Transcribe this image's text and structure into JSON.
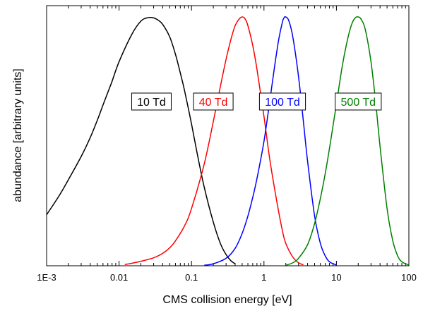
{
  "chart_data": {
    "type": "line",
    "xlabel": "CMS collision energy   [eV]",
    "ylabel": "abundance   [arbitrary units]",
    "x_scale": "log",
    "xlim": [
      0.001,
      100
    ],
    "ylim": [
      0,
      1
    ],
    "y_ticks_shown": false,
    "grid": false,
    "x_ticks": [
      {
        "value": 0.001,
        "label": "1E-3"
      },
      {
        "value": 0.01,
        "label": "0.01"
      },
      {
        "value": 0.1,
        "label": "0.1"
      },
      {
        "value": 1,
        "label": "1"
      },
      {
        "value": 10,
        "label": "10"
      },
      {
        "value": 100,
        "label": "100"
      }
    ],
    "series": [
      {
        "name": "10 Td",
        "color": "#000000",
        "label_pos": {
          "x": 0.028,
          "y": 0.66
        },
        "points": [
          [
            0.001,
            0.205
          ],
          [
            0.0015,
            0.283
          ],
          [
            0.002,
            0.346
          ],
          [
            0.003,
            0.439
          ],
          [
            0.004,
            0.515
          ],
          [
            0.005,
            0.584
          ],
          [
            0.006,
            0.646
          ],
          [
            0.007,
            0.697
          ],
          [
            0.008,
            0.741
          ],
          [
            0.01,
            0.82
          ],
          [
            0.015,
            0.93
          ],
          [
            0.02,
            0.983
          ],
          [
            0.025,
            0.997
          ],
          [
            0.03,
            0.996
          ],
          [
            0.035,
            0.986
          ],
          [
            0.04,
            0.97
          ],
          [
            0.05,
            0.92
          ],
          [
            0.06,
            0.85
          ],
          [
            0.07,
            0.775
          ],
          [
            0.08,
            0.705
          ],
          [
            0.1,
            0.57
          ],
          [
            0.12,
            0.45
          ],
          [
            0.15,
            0.315
          ],
          [
            0.2,
            0.175
          ],
          [
            0.25,
            0.09
          ],
          [
            0.3,
            0.045
          ],
          [
            0.35,
            0.02
          ],
          [
            0.4,
            0.008
          ]
        ]
      },
      {
        "name": "40 Td",
        "color": "#ff0000",
        "label_pos": {
          "x": 0.2,
          "y": 0.66
        },
        "points": [
          [
            0.012,
            0.005
          ],
          [
            0.015,
            0.01
          ],
          [
            0.02,
            0.018
          ],
          [
            0.03,
            0.032
          ],
          [
            0.04,
            0.05
          ],
          [
            0.05,
            0.072
          ],
          [
            0.06,
            0.1
          ],
          [
            0.08,
            0.16
          ],
          [
            0.1,
            0.23
          ],
          [
            0.15,
            0.41
          ],
          [
            0.2,
            0.58
          ],
          [
            0.25,
            0.72
          ],
          [
            0.3,
            0.83
          ],
          [
            0.35,
            0.91
          ],
          [
            0.4,
            0.965
          ],
          [
            0.45,
            0.99
          ],
          [
            0.5,
            1.0
          ],
          [
            0.55,
            0.992
          ],
          [
            0.6,
            0.965
          ],
          [
            0.7,
            0.885
          ],
          [
            0.8,
            0.79
          ],
          [
            1.0,
            0.6
          ],
          [
            1.2,
            0.43
          ],
          [
            1.5,
            0.26
          ],
          [
            1.8,
            0.14
          ],
          [
            2.0,
            0.09
          ],
          [
            2.5,
            0.035
          ],
          [
            3.0,
            0.012
          ],
          [
            3.5,
            0.004
          ]
        ]
      },
      {
        "name": "100 Td",
        "color": "#0000ff",
        "label_pos": {
          "x": 1.8,
          "y": 0.66
        },
        "points": [
          [
            0.15,
            0.002
          ],
          [
            0.2,
            0.008
          ],
          [
            0.3,
            0.03
          ],
          [
            0.4,
            0.07
          ],
          [
            0.5,
            0.13
          ],
          [
            0.6,
            0.2
          ],
          [
            0.7,
            0.275
          ],
          [
            0.8,
            0.35
          ],
          [
            1.0,
            0.5
          ],
          [
            1.2,
            0.66
          ],
          [
            1.4,
            0.8
          ],
          [
            1.6,
            0.91
          ],
          [
            1.8,
            0.98
          ],
          [
            1.9,
            0.997
          ],
          [
            2.0,
            1.0
          ],
          [
            2.2,
            0.985
          ],
          [
            2.5,
            0.92
          ],
          [
            3.0,
            0.76
          ],
          [
            3.5,
            0.58
          ],
          [
            4.0,
            0.42
          ],
          [
            5.0,
            0.2
          ],
          [
            6.0,
            0.09
          ],
          [
            7.0,
            0.04
          ],
          [
            8.0,
            0.016
          ],
          [
            10.0,
            0.003
          ]
        ]
      },
      {
        "name": "500 Td",
        "color": "#008000",
        "label_pos": {
          "x": 20,
          "y": 0.66
        },
        "points": [
          [
            2.0,
            0.002
          ],
          [
            2.5,
            0.012
          ],
          [
            3.0,
            0.03
          ],
          [
            4.0,
            0.085
          ],
          [
            5.0,
            0.17
          ],
          [
            6.0,
            0.27
          ],
          [
            7.0,
            0.37
          ],
          [
            8.0,
            0.47
          ],
          [
            10.0,
            0.65
          ],
          [
            12.0,
            0.8
          ],
          [
            14.0,
            0.9
          ],
          [
            16.0,
            0.965
          ],
          [
            18.0,
            0.995
          ],
          [
            20.0,
            1.0
          ],
          [
            22.0,
            0.99
          ],
          [
            25.0,
            0.95
          ],
          [
            30.0,
            0.82
          ],
          [
            35.0,
            0.65
          ],
          [
            40.0,
            0.48
          ],
          [
            50.0,
            0.23
          ],
          [
            60.0,
            0.1
          ],
          [
            70.0,
            0.04
          ],
          [
            80.0,
            0.016
          ],
          [
            100.0,
            0.003
          ]
        ]
      }
    ]
  }
}
